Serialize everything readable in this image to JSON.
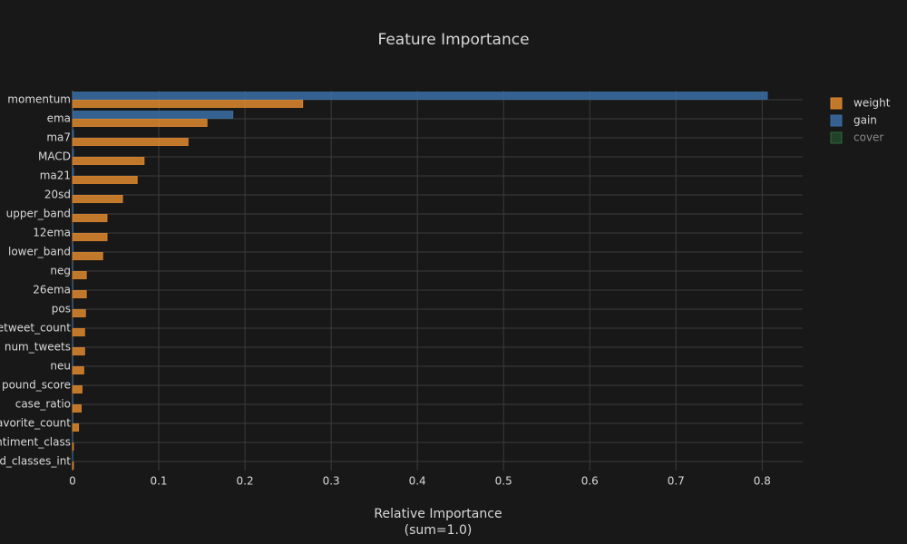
{
  "chart_data": {
    "type": "hbar",
    "title": "Feature Importance",
    "x_label": [
      "Relative Importance",
      "(sum=1.0)"
    ],
    "categories": [
      "momentum",
      "ema",
      "ma7",
      "MACD",
      "ma21",
      "20sd",
      "upper_band",
      "12ema",
      "lower_band",
      "neg",
      "26ema",
      "pos",
      "etweet_count",
      "num_tweets",
      "neu",
      "pound_score",
      "case_ratio",
      "avorite_count",
      "ntiment_class",
      "d_classes_int"
    ],
    "series": [
      {
        "name": "weight",
        "color": "#e0892e",
        "values": [
          0.267,
          0.156,
          0.134,
          0.083,
          0.075,
          0.058,
          0.04,
          0.04,
          0.035,
          0.016,
          0.016,
          0.015,
          0.014,
          0.014,
          0.013,
          0.011,
          0.01,
          0.007,
          0.001,
          0.001
        ]
      },
      {
        "name": "gain",
        "color": "#3a6ea5",
        "values": [
          0.806,
          0.186,
          0.001,
          0.001,
          0.001,
          0.0005,
          0.0005,
          0.0005,
          0.0005,
          0.0003,
          0.0003,
          0.0003,
          0.0003,
          0.0003,
          0.0003,
          0.0003,
          0.0003,
          0.0003,
          0.0002,
          0.0002
        ]
      },
      {
        "name": "cover",
        "color": "#2c6a3a",
        "hidden": true
      }
    ],
    "xlim": [
      0,
      0.847
    ],
    "xticks": [
      0,
      0.1,
      0.2,
      0.3,
      0.4,
      0.5,
      0.6,
      0.7,
      0.8
    ],
    "grid": true
  }
}
